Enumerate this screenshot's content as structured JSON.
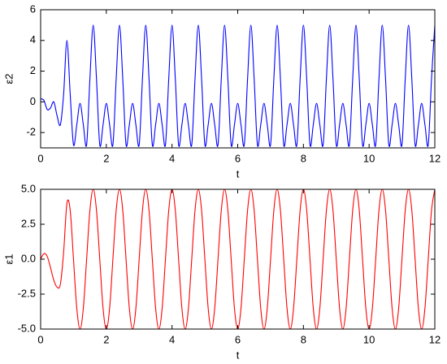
{
  "chart_data": [
    {
      "type": "line",
      "x_label": "t",
      "y_label": "ε2",
      "x": [
        0,
        0.1,
        0.2,
        0.3,
        0.4,
        0.5,
        0.6,
        0.7,
        0.8,
        0.9,
        1,
        1.1,
        1.2,
        1.3,
        1.4,
        1.5,
        1.6,
        1.7,
        1.8,
        1.9,
        2,
        2.1,
        2.2,
        2.3,
        2.4,
        2.5,
        2.6,
        2.7,
        2.8,
        2.9,
        3,
        3.1,
        3.2,
        3.3,
        3.4,
        3.5,
        3.6,
        3.7,
        3.8,
        3.9,
        4,
        4.1,
        4.2,
        4.3,
        4.4,
        4.5,
        4.6,
        4.7,
        4.8,
        4.9,
        5,
        5.1,
        5.2,
        5.3,
        5.4,
        5.5,
        5.6,
        5.7,
        5.8,
        5.9,
        6,
        6.1,
        6.2,
        6.3,
        6.4,
        6.5,
        6.6,
        6.7,
        6.8,
        6.9,
        7,
        7.1,
        7.2,
        7.3,
        7.4,
        7.5,
        7.6,
        7.7,
        7.8,
        7.9,
        8,
        8.1,
        8.2,
        8.3,
        8.4,
        8.5,
        8.6,
        8.7,
        8.8,
        8.9,
        9,
        9.1,
        9.2,
        9.3,
        9.4,
        9.5,
        9.6,
        9.7,
        9.8,
        9.9,
        10,
        10.1,
        10.2,
        10.3,
        10.4,
        10.5,
        10.6,
        10.7,
        10.8,
        10.9,
        11,
        11.1,
        11.2,
        11.3,
        11.4,
        11.5,
        11.6,
        11.7,
        11.8,
        11.9,
        12
      ],
      "series": [
        {
          "color": "#0000ff",
          "values": [
            0.2,
            0.1,
            -0.5,
            -0.4,
            0,
            -0.9,
            -1.5,
            0.5,
            4,
            0.5,
            -2.8,
            -1.5,
            -0.1,
            -1.5,
            -2.8,
            1.5,
            5,
            1.5,
            -2.8,
            -1.5,
            -0.1,
            -1.5,
            -2.8,
            1.5,
            5,
            1.5,
            -2.8,
            -1.5,
            -0.1,
            -1.5,
            -2.8,
            1.5,
            5,
            1.5,
            -2.8,
            -1.5,
            -0.1,
            -1.5,
            -2.8,
            1.5,
            5,
            1.5,
            -2.8,
            -1.5,
            -0.1,
            -1.5,
            -2.8,
            1.5,
            5,
            1.5,
            -2.8,
            -1.5,
            -0.1,
            -1.5,
            -2.8,
            1.5,
            5,
            1.5,
            -2.8,
            -1.5,
            -0.1,
            -1.5,
            -2.8,
            1.5,
            5,
            1.5,
            -2.8,
            -1.5,
            -0.1,
            -1.5,
            -2.8,
            1.5,
            5,
            1.5,
            -2.8,
            -1.5,
            -0.1,
            -1.5,
            -2.8,
            1.5,
            5,
            1.5,
            -2.8,
            -1.5,
            -0.1,
            -1.5,
            -2.8,
            1.5,
            5,
            1.5,
            -2.8,
            -1.5,
            -0.1,
            -1.5,
            -2.8,
            1.5,
            5,
            1.5,
            -2.8,
            -1.5,
            -0.1,
            -1.5,
            -2.8,
            1.5,
            5,
            1.5,
            -2.8,
            -1.5,
            -0.1,
            -1.5,
            -2.8,
            1.5,
            5,
            1.5,
            -2.8,
            -1.5,
            -0.1,
            -1.5,
            -2.8,
            1.5,
            5
          ]
        }
      ],
      "xlim": [
        0,
        12
      ],
      "xticks": [
        0,
        2,
        4,
        6,
        8,
        10,
        12
      ],
      "ylim": [
        -3,
        6
      ],
      "yticks": [
        -2,
        0,
        2,
        4,
        6
      ]
    },
    {
      "type": "line",
      "x_label": "t",
      "y_label": "ε1",
      "x": [
        0,
        0.1,
        0.2,
        0.3,
        0.4,
        0.5,
        0.6,
        0.7,
        0.8,
        0.9,
        1,
        1.1,
        1.2,
        1.3,
        1.4,
        1.5,
        1.6,
        1.7,
        1.8,
        1.9,
        2,
        2.1,
        2.2,
        2.3,
        2.4,
        2.5,
        2.6,
        2.7,
        2.8,
        2.9,
        3,
        3.1,
        3.2,
        3.3,
        3.4,
        3.5,
        3.6,
        3.7,
        3.8,
        3.9,
        4,
        4.1,
        4.2,
        4.3,
        4.4,
        4.5,
        4.6,
        4.7,
        4.8,
        4.9,
        5,
        5.1,
        5.2,
        5.3,
        5.4,
        5.5,
        5.6,
        5.7,
        5.8,
        5.9,
        6,
        6.1,
        6.2,
        6.3,
        6.4,
        6.5,
        6.6,
        6.7,
        6.8,
        6.9,
        7,
        7.1,
        7.2,
        7.3,
        7.4,
        7.5,
        7.6,
        7.7,
        7.8,
        7.9,
        8,
        8.1,
        8.2,
        8.3,
        8.4,
        8.5,
        8.6,
        8.7,
        8.8,
        8.9,
        9,
        9.1,
        9.2,
        9.3,
        9.4,
        9.5,
        9.6,
        9.7,
        9.8,
        9.9,
        10,
        10.1,
        10.2,
        10.3,
        10.4,
        10.5,
        10.6,
        10.7,
        10.8,
        10.9,
        11,
        11.1,
        11.2,
        11.3,
        11.4,
        11.5,
        11.6,
        11.7,
        11.8,
        11.9,
        12
      ],
      "series": [
        {
          "color": "#ff0000",
          "values": [
            0,
            0.4,
            0.2,
            -0.6,
            -1.5,
            -2,
            -1.8,
            0.5,
            4,
            3.5,
            0,
            -3.5,
            -5,
            -3.5,
            0,
            3.5,
            5,
            3.5,
            0,
            -3.5,
            -5,
            -3.5,
            0,
            3.5,
            5,
            3.5,
            0,
            -3.5,
            -5,
            -3.5,
            0,
            3.5,
            5,
            3.5,
            0,
            -3.5,
            -5,
            -3.5,
            0,
            3.5,
            5,
            3.5,
            0,
            -3.5,
            -5,
            -3.5,
            0,
            3.5,
            5,
            3.5,
            0,
            -3.5,
            -5,
            -3.5,
            0,
            3.5,
            5,
            3.5,
            0,
            -3.5,
            -5,
            -3.5,
            0,
            3.5,
            5,
            3.5,
            0,
            -3.5,
            -5,
            -3.5,
            0,
            3.5,
            5,
            3.5,
            0,
            -3.5,
            -5,
            -3.5,
            0,
            3.5,
            5,
            3.5,
            0,
            -3.5,
            -5,
            -3.5,
            0,
            3.5,
            5,
            3.5,
            0,
            -3.5,
            -5,
            -3.5,
            0,
            3.5,
            5,
            3.5,
            0,
            -3.5,
            -5,
            -3.5,
            0,
            3.5,
            5,
            3.5,
            0,
            -3.5,
            -5,
            -3.5,
            0,
            3.5,
            5,
            3.5,
            0,
            -3.5,
            -5,
            -3.5,
            0,
            3.5,
            5
          ]
        }
      ],
      "xlim": [
        0,
        12
      ],
      "xticks": [
        0,
        2,
        4,
        6,
        8,
        10,
        12
      ],
      "ylim": [
        -5,
        5
      ],
      "yticks": [
        {
          "value": -5,
          "label": "-5.0"
        },
        {
          "value": -2.5,
          "label": "-2.5"
        },
        {
          "value": 0,
          "label": "0.0"
        },
        {
          "value": 2.5,
          "label": "2.5"
        },
        {
          "value": 5,
          "label": "5.0"
        }
      ]
    }
  ]
}
